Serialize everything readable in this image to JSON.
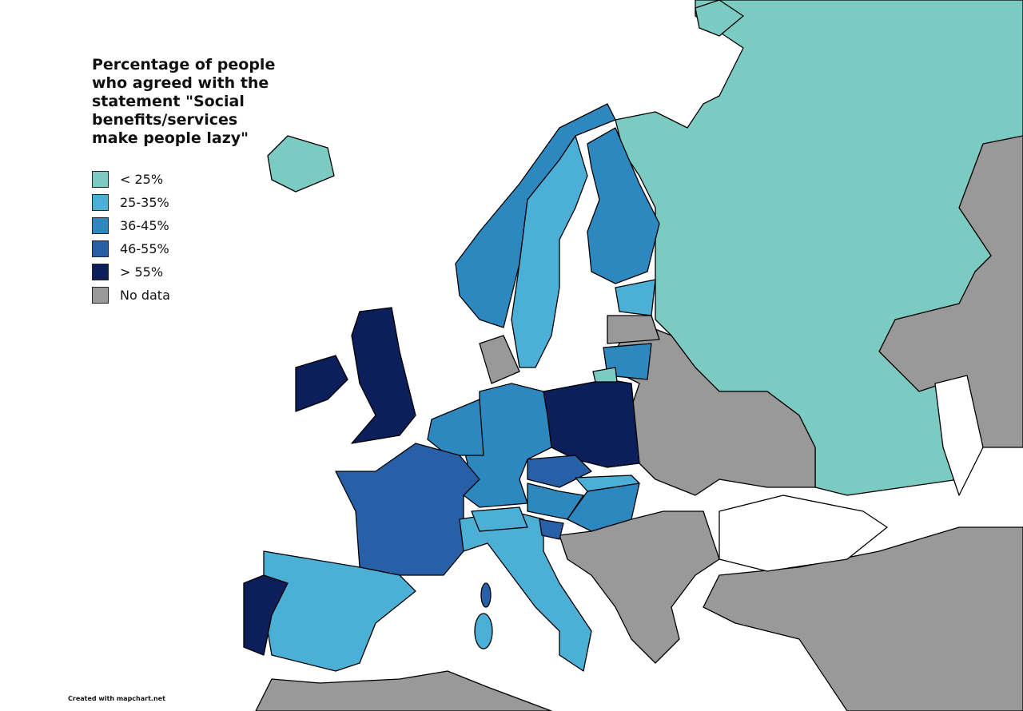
{
  "title": "Percentage of people who agreed with the statement \"Social benefits/services make people lazy\"",
  "legend": {
    "items": [
      {
        "label": "< 25%",
        "color": "#7ccbc3"
      },
      {
        "label": "25-35%",
        "color": "#4bafd6"
      },
      {
        "label": "36-45%",
        "color": "#2e88c0"
      },
      {
        "label": "46-55%",
        "color": "#2860a8"
      },
      {
        "label": "> 55%",
        "color": "#0c1f5b"
      },
      {
        "label": "No data",
        "color": "#999999"
      }
    ]
  },
  "credit": "Created with mapchart.net"
}
